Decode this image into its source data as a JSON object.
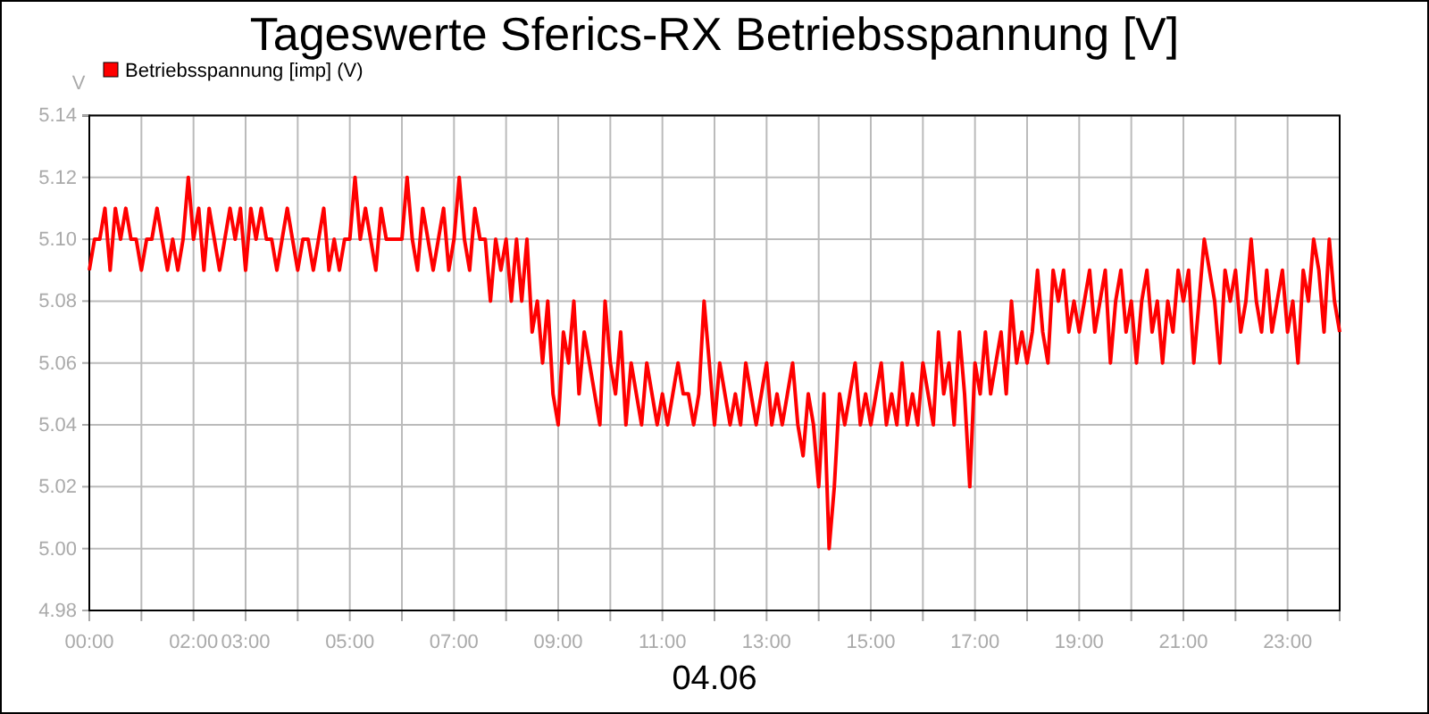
{
  "chart_data": {
    "type": "line",
    "title": "Tageswerte Sferics-RX Betriebsspannung [V]",
    "xlabel": "04.06",
    "ylabel": "V",
    "legend": "top left",
    "grid": true,
    "marker": "none",
    "line_style": "solid",
    "xlim": [
      0,
      24
    ],
    "ylim": [
      4.98,
      5.14
    ],
    "xticks": [
      {
        "value": 0,
        "label": "00:00"
      },
      {
        "value": 1,
        "label": null
      },
      {
        "value": 2,
        "label": "02:00"
      },
      {
        "value": 3,
        "label": "03:00"
      },
      {
        "value": 4,
        "label": null
      },
      {
        "value": 5,
        "label": "05:00"
      },
      {
        "value": 6,
        "label": null
      },
      {
        "value": 7,
        "label": "07:00"
      },
      {
        "value": 8,
        "label": null
      },
      {
        "value": 9,
        "label": "09:00"
      },
      {
        "value": 10,
        "label": null
      },
      {
        "value": 11,
        "label": "11:00"
      },
      {
        "value": 12,
        "label": null
      },
      {
        "value": 13,
        "label": "13:00"
      },
      {
        "value": 14,
        "label": null
      },
      {
        "value": 15,
        "label": "15:00"
      },
      {
        "value": 16,
        "label": null
      },
      {
        "value": 17,
        "label": "17:00"
      },
      {
        "value": 18,
        "label": null
      },
      {
        "value": 19,
        "label": "19:00"
      },
      {
        "value": 20,
        "label": null
      },
      {
        "value": 21,
        "label": "21:00"
      },
      {
        "value": 22,
        "label": null
      },
      {
        "value": 23,
        "label": "23:00"
      },
      {
        "value": 24,
        "label": null
      }
    ],
    "yticks": [
      {
        "value": 4.98,
        "label": "4.98"
      },
      {
        "value": 5,
        "label": "5.00"
      },
      {
        "value": 5.02,
        "label": "5.02"
      },
      {
        "value": 5.04,
        "label": "5.04"
      },
      {
        "value": 5.06,
        "label": "5.06"
      },
      {
        "value": 5.08,
        "label": "5.08"
      },
      {
        "value": 5.1,
        "label": "5.10"
      },
      {
        "value": 5.12,
        "label": "5.12"
      },
      {
        "value": 5.14,
        "label": "5.14"
      }
    ],
    "x": [
      0,
      0.1,
      0.2,
      0.3,
      0.4,
      0.5,
      0.6,
      0.7,
      0.8,
      0.9,
      1,
      1.1,
      1.2,
      1.3,
      1.4,
      1.5,
      1.6,
      1.7,
      1.8,
      1.9,
      2,
      2.1,
      2.2,
      2.3,
      2.4,
      2.5,
      2.6,
      2.7,
      2.8,
      2.9,
      3,
      3.1,
      3.2,
      3.3,
      3.4,
      3.5,
      3.6,
      3.7,
      3.8,
      3.9,
      4,
      4.1,
      4.2,
      4.3,
      4.4,
      4.5,
      4.6,
      4.7,
      4.8,
      4.9,
      5,
      5.1,
      5.2,
      5.3,
      5.4,
      5.5,
      5.6,
      5.7,
      5.8,
      5.9,
      6,
      6.1,
      6.2,
      6.3,
      6.4,
      6.5,
      6.6,
      6.7,
      6.8,
      6.9,
      7,
      7.1,
      7.2,
      7.3,
      7.4,
      7.5,
      7.6,
      7.7,
      7.8,
      7.9,
      8,
      8.1,
      8.2,
      8.3,
      8.4,
      8.5,
      8.6,
      8.7,
      8.8,
      8.9,
      9,
      9.1,
      9.2,
      9.3,
      9.4,
      9.5,
      9.6,
      9.7,
      9.8,
      9.9,
      10,
      10.1,
      10.2,
      10.3,
      10.4,
      10.5,
      10.6,
      10.7,
      10.8,
      10.9,
      11,
      11.1,
      11.2,
      11.3,
      11.4,
      11.5,
      11.6,
      11.7,
      11.8,
      11.9,
      12,
      12.1,
      12.2,
      12.3,
      12.4,
      12.5,
      12.6,
      12.7,
      12.8,
      12.9,
      13,
      13.1,
      13.2,
      13.3,
      13.4,
      13.5,
      13.6,
      13.7,
      13.8,
      13.9,
      14,
      14.1,
      14.2,
      14.3,
      14.4,
      14.5,
      14.6,
      14.7,
      14.8,
      14.9,
      15,
      15.1,
      15.2,
      15.3,
      15.4,
      15.5,
      15.6,
      15.7,
      15.8,
      15.9,
      16,
      16.1,
      16.2,
      16.3,
      16.4,
      16.5,
      16.6,
      16.7,
      16.8,
      16.9,
      17,
      17.1,
      17.2,
      17.3,
      17.4,
      17.5,
      17.6,
      17.7,
      17.8,
      17.9,
      18,
      18.1,
      18.2,
      18.3,
      18.4,
      18.5,
      18.6,
      18.7,
      18.8,
      18.9,
      19,
      19.1,
      19.2,
      19.3,
      19.4,
      19.5,
      19.6,
      19.7,
      19.8,
      19.9,
      20,
      20.1,
      20.2,
      20.3,
      20.4,
      20.5,
      20.6,
      20.7,
      20.8,
      20.9,
      21,
      21.1,
      21.2,
      21.3,
      21.4,
      21.5,
      21.6,
      21.7,
      21.8,
      21.9,
      22,
      22.1,
      22.2,
      22.3,
      22.4,
      22.5,
      22.6,
      22.7,
      22.8,
      22.9,
      23,
      23.1,
      23.2,
      23.3,
      23.4,
      23.5,
      23.6,
      23.7,
      23.8,
      23.9,
      24
    ],
    "series": [
      {
        "name": "Betriebsspannung [imp] (V)",
        "color": "#ff0000",
        "values": [
          5.09,
          5.1,
          5.1,
          5.11,
          5.09,
          5.11,
          5.1,
          5.11,
          5.1,
          5.1,
          5.09,
          5.1,
          5.1,
          5.11,
          5.1,
          5.09,
          5.1,
          5.09,
          5.1,
          5.12,
          5.1,
          5.11,
          5.09,
          5.11,
          5.1,
          5.09,
          5.1,
          5.11,
          5.1,
          5.11,
          5.09,
          5.11,
          5.1,
          5.11,
          5.1,
          5.1,
          5.09,
          5.1,
          5.11,
          5.1,
          5.09,
          5.1,
          5.1,
          5.09,
          5.1,
          5.11,
          5.09,
          5.1,
          5.09,
          5.1,
          5.1,
          5.12,
          5.1,
          5.11,
          5.1,
          5.09,
          5.11,
          5.1,
          5.1,
          5.1,
          5.1,
          5.12,
          5.1,
          5.09,
          5.11,
          5.1,
          5.09,
          5.1,
          5.11,
          5.09,
          5.1,
          5.12,
          5.1,
          5.09,
          5.11,
          5.1,
          5.1,
          5.08,
          5.1,
          5.09,
          5.1,
          5.08,
          5.1,
          5.08,
          5.1,
          5.07,
          5.08,
          5.06,
          5.08,
          5.05,
          5.04,
          5.07,
          5.06,
          5.08,
          5.05,
          5.07,
          5.06,
          5.05,
          5.04,
          5.08,
          5.06,
          5.05,
          5.07,
          5.04,
          5.06,
          5.05,
          5.04,
          5.06,
          5.05,
          5.04,
          5.05,
          5.04,
          5.05,
          5.06,
          5.05,
          5.05,
          5.04,
          5.05,
          5.08,
          5.06,
          5.04,
          5.06,
          5.05,
          5.04,
          5.05,
          5.04,
          5.06,
          5.05,
          5.04,
          5.05,
          5.06,
          5.04,
          5.05,
          5.04,
          5.05,
          5.06,
          5.04,
          5.03,
          5.05,
          5.04,
          5.02,
          5.05,
          5.0,
          5.02,
          5.05,
          5.04,
          5.05,
          5.06,
          5.04,
          5.05,
          5.04,
          5.05,
          5.06,
          5.04,
          5.05,
          5.04,
          5.06,
          5.04,
          5.05,
          5.04,
          5.06,
          5.05,
          5.04,
          5.07,
          5.05,
          5.06,
          5.04,
          5.07,
          5.05,
          5.02,
          5.06,
          5.05,
          5.07,
          5.05,
          5.06,
          5.07,
          5.05,
          5.08,
          5.06,
          5.07,
          5.06,
          5.07,
          5.09,
          5.07,
          5.06,
          5.09,
          5.08,
          5.09,
          5.07,
          5.08,
          5.07,
          5.08,
          5.09,
          5.07,
          5.08,
          5.09,
          5.06,
          5.08,
          5.09,
          5.07,
          5.08,
          5.06,
          5.08,
          5.09,
          5.07,
          5.08,
          5.06,
          5.08,
          5.07,
          5.09,
          5.08,
          5.09,
          5.06,
          5.08,
          5.1,
          5.09,
          5.08,
          5.06,
          5.09,
          5.08,
          5.09,
          5.07,
          5.08,
          5.1,
          5.08,
          5.07,
          5.09,
          5.07,
          5.08,
          5.09,
          5.07,
          5.08,
          5.06,
          5.09,
          5.08,
          5.1,
          5.09,
          5.07,
          5.1,
          5.08,
          5.07
        ]
      }
    ]
  }
}
